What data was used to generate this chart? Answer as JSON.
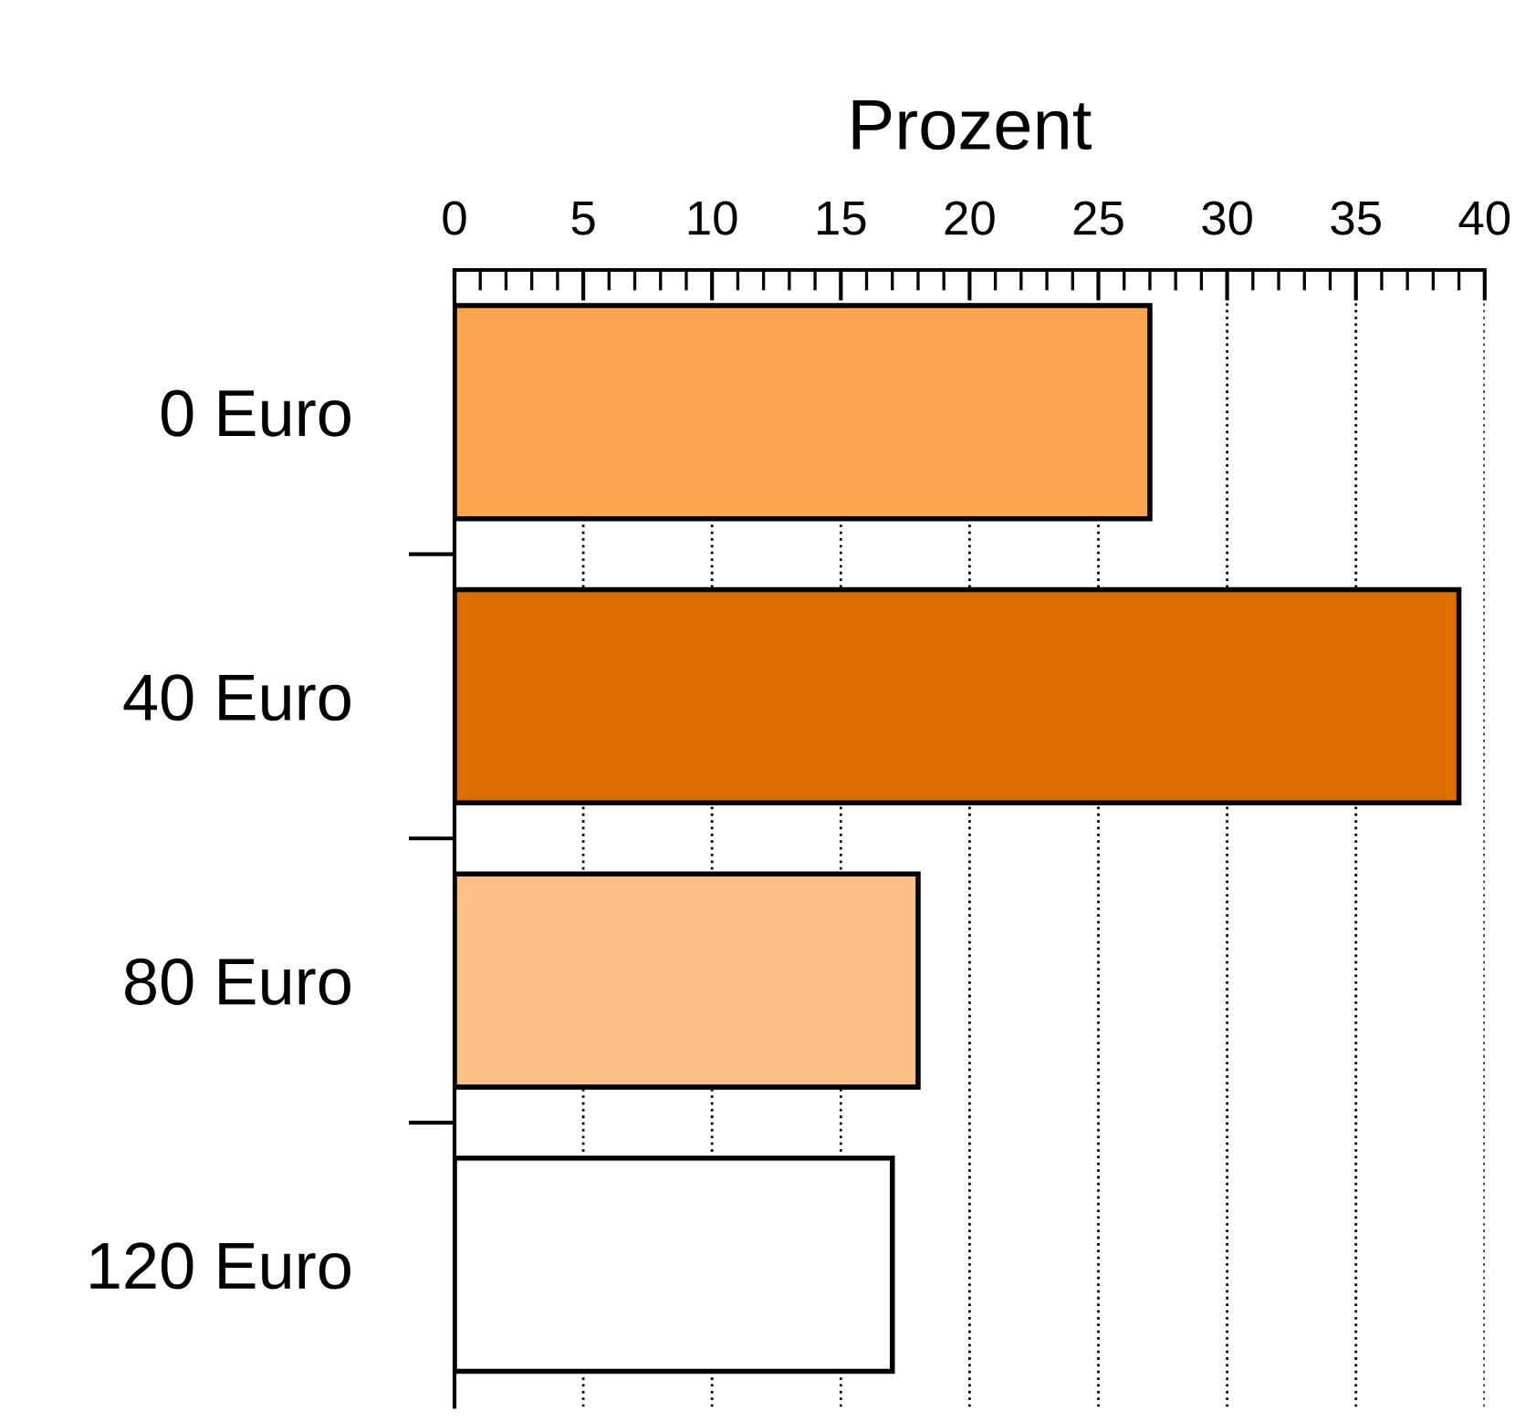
{
  "chart_data": {
    "type": "bar",
    "orientation": "horizontal",
    "xlabel": "Prozent",
    "categories": [
      "0 Euro",
      "40 Euro",
      "80 Euro",
      "120 Euro"
    ],
    "values": [
      27,
      39,
      18,
      17
    ],
    "colors": [
      "#fba54e",
      "#dd6f00",
      "#fdbf85",
      "#ffffff"
    ],
    "xlim": [
      0,
      40
    ],
    "xticks": [
      0,
      5,
      10,
      15,
      20,
      25,
      30,
      35,
      40
    ],
    "grid": "x",
    "legend": false
  }
}
